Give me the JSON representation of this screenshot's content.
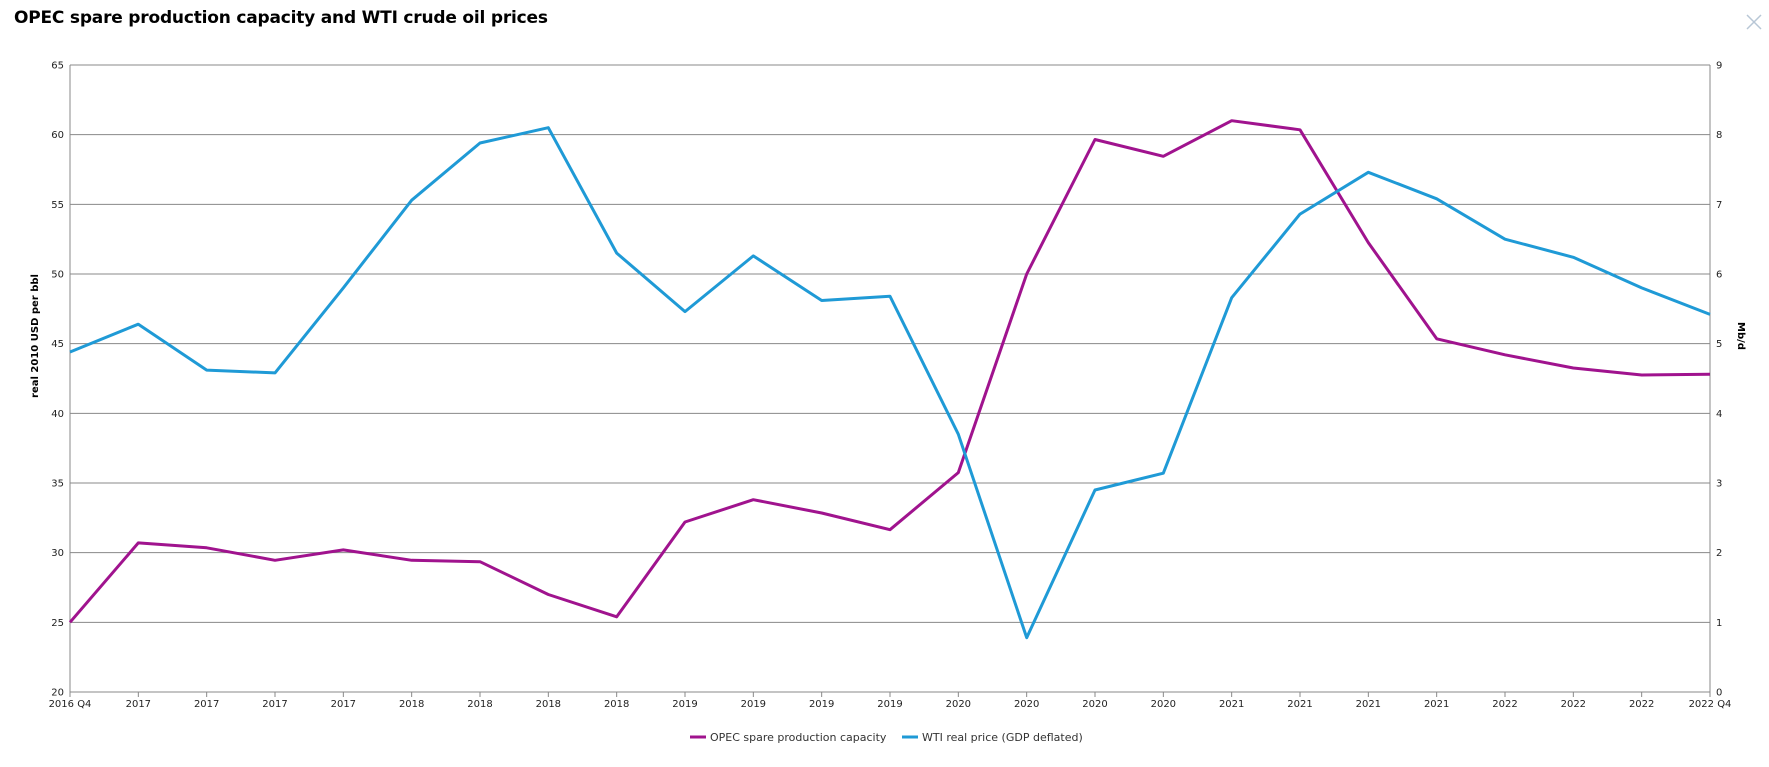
{
  "window": {
    "title": "OPEC spare production capacity and WTI crude oil prices",
    "close_icon": "close-icon"
  },
  "chart_data": {
    "type": "line",
    "title": "OPEC spare production capacity and WTI crude oil prices",
    "categories": [
      "2016 Q4",
      "2017",
      "2017",
      "2017",
      "2017",
      "2018",
      "2018",
      "2018",
      "2018",
      "2019",
      "2019",
      "2019",
      "2019",
      "2020",
      "2020",
      "2020",
      "2020",
      "2021",
      "2021",
      "2021",
      "2021",
      "2022",
      "2022",
      "2022",
      "2022 Q4"
    ],
    "y_left": {
      "label": "real 2010 USD per bbl",
      "min": 20,
      "max": 65,
      "ticks": [
        20,
        25,
        30,
        35,
        40,
        45,
        50,
        55,
        60,
        65
      ]
    },
    "y_right": {
      "label": "Mb/d",
      "min": 0,
      "max": 9,
      "ticks": [
        0,
        1,
        2,
        3,
        4,
        5,
        6,
        7,
        8,
        9
      ]
    },
    "grid": true,
    "legend_position": "bottom-center",
    "series": [
      {
        "name": "OPEC spare production capacity",
        "axis": "right",
        "color": "#a0138e",
        "values": [
          1.0,
          2.14,
          2.07,
          1.89,
          2.04,
          1.89,
          1.87,
          1.4,
          1.08,
          2.44,
          2.76,
          2.57,
          2.33,
          3.15,
          6.0,
          7.93,
          7.69,
          8.2,
          8.07,
          6.45,
          5.07,
          4.84,
          4.65,
          4.55,
          4.56
        ]
      },
      {
        "name": "WTI real price (GDP deflated)",
        "axis": "left",
        "color": "#1f9ad6",
        "values": [
          44.4,
          46.4,
          43.1,
          42.9,
          49.0,
          55.3,
          59.4,
          60.5,
          51.5,
          47.3,
          51.3,
          48.1,
          48.4,
          38.5,
          23.9,
          34.5,
          35.7,
          48.3,
          54.3,
          57.3,
          55.4,
          52.5,
          51.2,
          49.0,
          47.1
        ]
      }
    ]
  }
}
